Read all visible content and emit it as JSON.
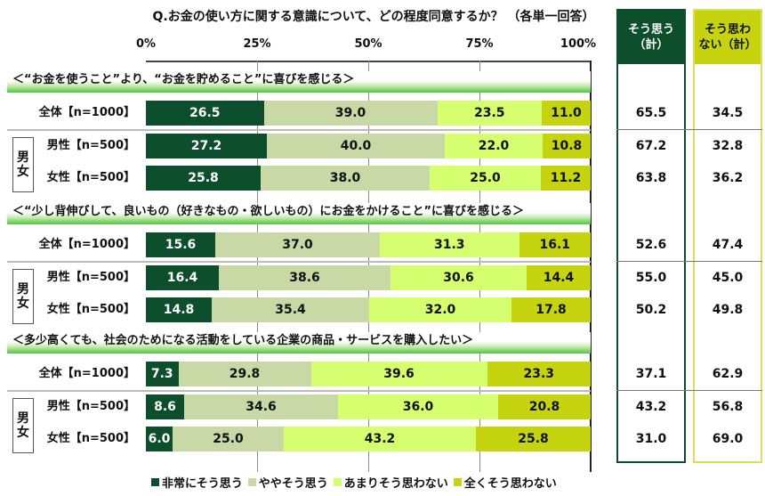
{
  "title": "Q.お金の使い方に関する意識について、どの程度同意するか？ （各単一回答）",
  "axis": {
    "ticks": [
      "0%",
      "25%",
      "50%",
      "75%",
      "100%"
    ]
  },
  "columns": {
    "agree_total": "そう思う\n（計）",
    "disagree_total": "そう思わ\nない（計）"
  },
  "group_label": "男\n女",
  "colors": {
    "strongly_agree": "#0d4f2c",
    "somewhat_agree": "#c8d9a6",
    "somewhat_disagree": "#d6ff70",
    "strongly_disagree": "#c6d410",
    "agree_header": "#0d4f2c",
    "disagree_header": "#c6d410"
  },
  "legend": [
    "非常にそう思う",
    "ややそう思う",
    "あまりそう思わない",
    "全くそう思わない"
  ],
  "sections": [
    {
      "label": "＜“お金を使うこと”より、“お金を貯めること”に喜びを感じる＞",
      "rows": [
        {
          "label": "全体【n=1000】",
          "values": [
            "26.5",
            "39.0",
            "23.5",
            "11.0"
          ],
          "agree": "65.5",
          "disagree": "34.5"
        },
        {
          "label": "男性【n=500】",
          "values": [
            "27.2",
            "40.0",
            "22.0",
            "10.8"
          ],
          "agree": "67.2",
          "disagree": "32.8"
        },
        {
          "label": "女性【n=500】",
          "values": [
            "25.8",
            "38.0",
            "25.0",
            "11.2"
          ],
          "agree": "63.8",
          "disagree": "36.2"
        }
      ]
    },
    {
      "label": "＜“少し背伸びして、良いもの（好きなもの・欲しいもの）にお金をかけること”に喜びを感じる＞",
      "rows": [
        {
          "label": "全体【n=1000】",
          "values": [
            "15.6",
            "37.0",
            "31.3",
            "16.1"
          ],
          "agree": "52.6",
          "disagree": "47.4"
        },
        {
          "label": "男性【n=500】",
          "values": [
            "16.4",
            "38.6",
            "30.6",
            "14.4"
          ],
          "agree": "55.0",
          "disagree": "45.0"
        },
        {
          "label": "女性【n=500】",
          "values": [
            "14.8",
            "35.4",
            "32.0",
            "17.8"
          ],
          "agree": "50.2",
          "disagree": "49.8"
        }
      ]
    },
    {
      "label": "＜多少高くても、社会のためになる活動をしている企業の商品・サービスを購入したい＞",
      "rows": [
        {
          "label": "全体【n=1000】",
          "values": [
            "7.3",
            "29.8",
            "39.6",
            "23.3"
          ],
          "agree": "37.1",
          "disagree": "62.9"
        },
        {
          "label": "男性【n=500】",
          "values": [
            "8.6",
            "34.6",
            "36.0",
            "20.8"
          ],
          "agree": "43.2",
          "disagree": "56.8"
        },
        {
          "label": "女性【n=500】",
          "values": [
            "6.0",
            "25.0",
            "43.2",
            "25.8"
          ],
          "agree": "31.0",
          "disagree": "69.0"
        }
      ]
    }
  ],
  "chart_data": {
    "type": "bar",
    "orientation": "horizontal-stacked-100",
    "title": "Q.お金の使い方に関する意識について、どの程度同意するか？ （各単一回答）",
    "xlabel": "",
    "ylabel": "",
    "xlim": [
      0,
      100
    ],
    "xticks": [
      "0%",
      "25%",
      "50%",
      "75%",
      "100%"
    ],
    "grid": true,
    "legend_position": "bottom",
    "categories": [
      "お金を貯めること_全体【n=1000】",
      "お金を貯めること_男性【n=500】",
      "お金を貯めること_女性【n=500】",
      "良いものにお金をかけること_全体【n=1000】",
      "良いものにお金をかけること_男性【n=500】",
      "良いものにお金をかけること_女性【n=500】",
      "社会のためになる企業の商品購入_全体【n=1000】",
      "社会のためになる企業の商品購入_男性【n=500】",
      "社会のためになる企業の商品購入_女性【n=500】"
    ],
    "series": [
      {
        "name": "非常にそう思う",
        "values": [
          26.5,
          27.2,
          25.8,
          15.6,
          16.4,
          14.8,
          7.3,
          8.6,
          6.0
        ]
      },
      {
        "name": "ややそう思う",
        "values": [
          39.0,
          40.0,
          38.0,
          37.0,
          38.6,
          35.4,
          29.8,
          34.6,
          25.0
        ]
      },
      {
        "name": "あまりそう思わない",
        "values": [
          23.5,
          22.0,
          25.0,
          31.3,
          30.6,
          32.0,
          39.6,
          36.0,
          43.2
        ]
      },
      {
        "name": "全くそう思わない",
        "values": [
          11.0,
          10.8,
          11.2,
          16.1,
          14.4,
          17.8,
          23.3,
          20.8,
          25.8
        ]
      }
    ],
    "summary_columns": {
      "そう思う（計）": [
        65.5,
        67.2,
        63.8,
        52.6,
        55.0,
        50.2,
        37.1,
        43.2,
        31.0
      ],
      "そう思わない（計）": [
        34.5,
        32.8,
        36.2,
        47.4,
        45.0,
        49.8,
        62.9,
        56.8,
        69.0
      ]
    }
  }
}
